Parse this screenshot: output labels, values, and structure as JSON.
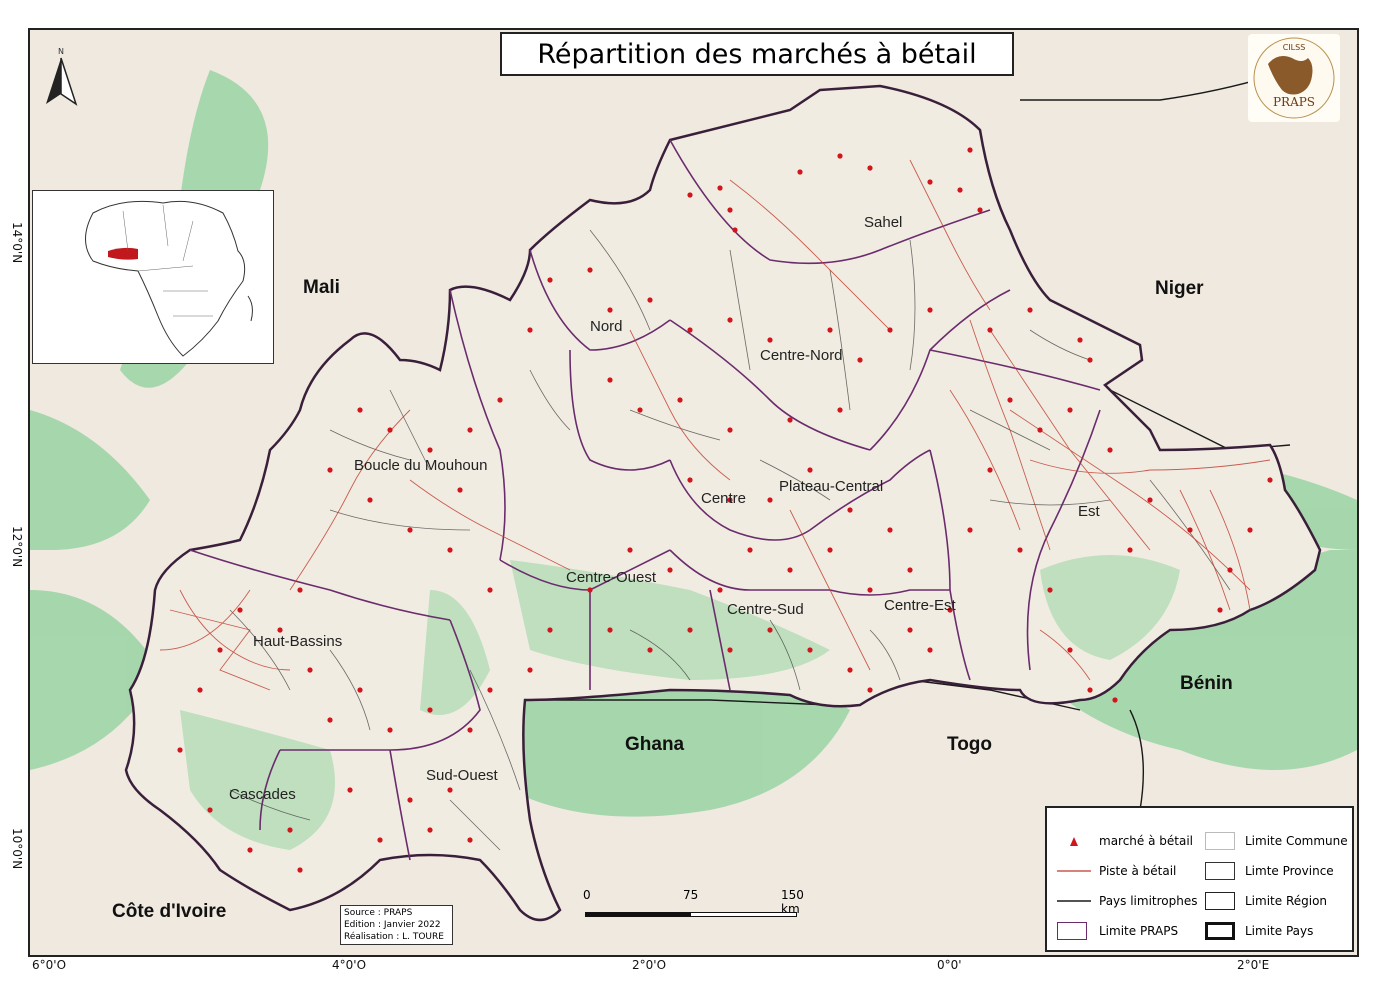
{
  "title": "Répartition des marchés à bétail",
  "countries": [
    "Mali",
    "Niger",
    "Bénin",
    "Togo",
    "Ghana",
    "Côte d'Ivoire"
  ],
  "regions": [
    "Sahel",
    "Nord",
    "Centre-Nord",
    "Boucle du Mouhoun",
    "Centre",
    "Plateau-Central",
    "Est",
    "Centre-Ouest",
    "Centre-Sud",
    "Centre-Est",
    "Haut-Bassins",
    "Cascades",
    "Sud-Ouest"
  ],
  "lat_labels": [
    "14°0'N",
    "12°0'N",
    "10°0'N"
  ],
  "lon_labels": [
    "6°0'O",
    "4°0'O",
    "2°0'O",
    "0°0'",
    "2°0'E"
  ],
  "north_label": "N",
  "source": {
    "line1": "Source : PRAPS",
    "line2": "Edition : Janvier 2022",
    "line3": "Réalisation : L. TOURE"
  },
  "scale": {
    "labels": [
      "0",
      "75",
      "150 km"
    ]
  },
  "legend": {
    "items_left": [
      "marché à bétail",
      "Piste à bétail",
      "Pays limitrophes",
      "Limite PRAPS"
    ],
    "items_right": [
      "Limite Commune",
      "Limte Province",
      "Limite Région",
      "Limite Pays"
    ]
  },
  "logo": {
    "text": "PRAPS",
    "subtitle": "CILSS"
  },
  "colors": {
    "market": "#d0161c",
    "cattle_track": "#c0392b",
    "neighbor_border": "#1a1a1a",
    "praps_limit": "#6b2c6e",
    "country_border": "#3a1f3a",
    "vegetation": "#8fcf98",
    "sahel_zone": "#e3c8a0",
    "inset_highlight": "#c0181c"
  },
  "icons": [
    "north-arrow-icon",
    "africa-inset-map",
    "praps-logo"
  ]
}
